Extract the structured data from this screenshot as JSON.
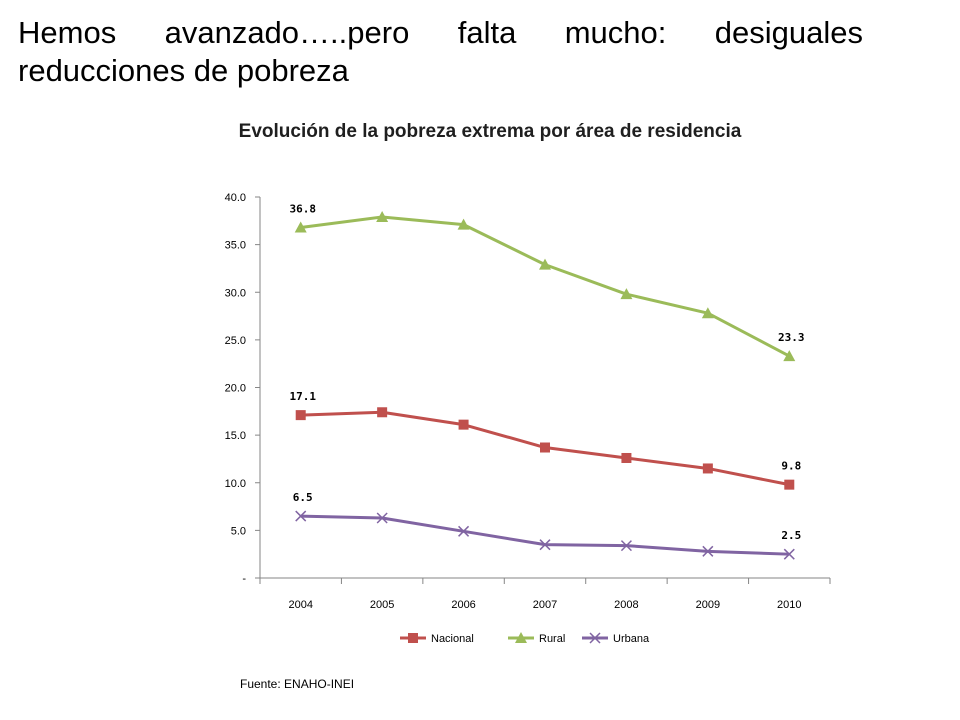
{
  "slide": {
    "title": "Hemos avanzado…..pero falta mucho: desiguales reducciones de pobreza"
  },
  "source": "Fuente: ENAHO-INEI",
  "chart_data": {
    "type": "line",
    "title": "Evolución de la pobreza extrema por área de residencia",
    "xlabel": "",
    "ylabel": "",
    "categories": [
      "2004",
      "2005",
      "2006",
      "2007",
      "2008",
      "2009",
      "2010"
    ],
    "ylim": [
      0,
      40
    ],
    "yticks": [
      "-",
      "5.0",
      "10.0",
      "15.0",
      "20.0",
      "25.0",
      "30.0",
      "35.0",
      "40.0"
    ],
    "grid": false,
    "legend_position": "bottom",
    "series": [
      {
        "name": "Nacional",
        "color": "#c0504d",
        "marker": "square",
        "values": [
          17.1,
          17.4,
          16.1,
          13.7,
          12.6,
          11.5,
          9.8
        ],
        "labels": [
          "17.1",
          "",
          "",
          "",
          "",
          "",
          "9.8"
        ]
      },
      {
        "name": "Rural",
        "color": "#9bbb59",
        "marker": "triangle",
        "values": [
          36.8,
          37.9,
          37.1,
          32.9,
          29.8,
          27.8,
          23.3
        ],
        "labels": [
          "36.8",
          "",
          "",
          "",
          "",
          "",
          "23.3"
        ]
      },
      {
        "name": "Urbana",
        "color": "#8064a2",
        "marker": "x",
        "values": [
          6.5,
          6.3,
          4.9,
          3.5,
          3.4,
          2.8,
          2.5
        ],
        "labels": [
          "6.5",
          "",
          "",
          "",
          "",
          "",
          "2.5"
        ]
      }
    ]
  }
}
